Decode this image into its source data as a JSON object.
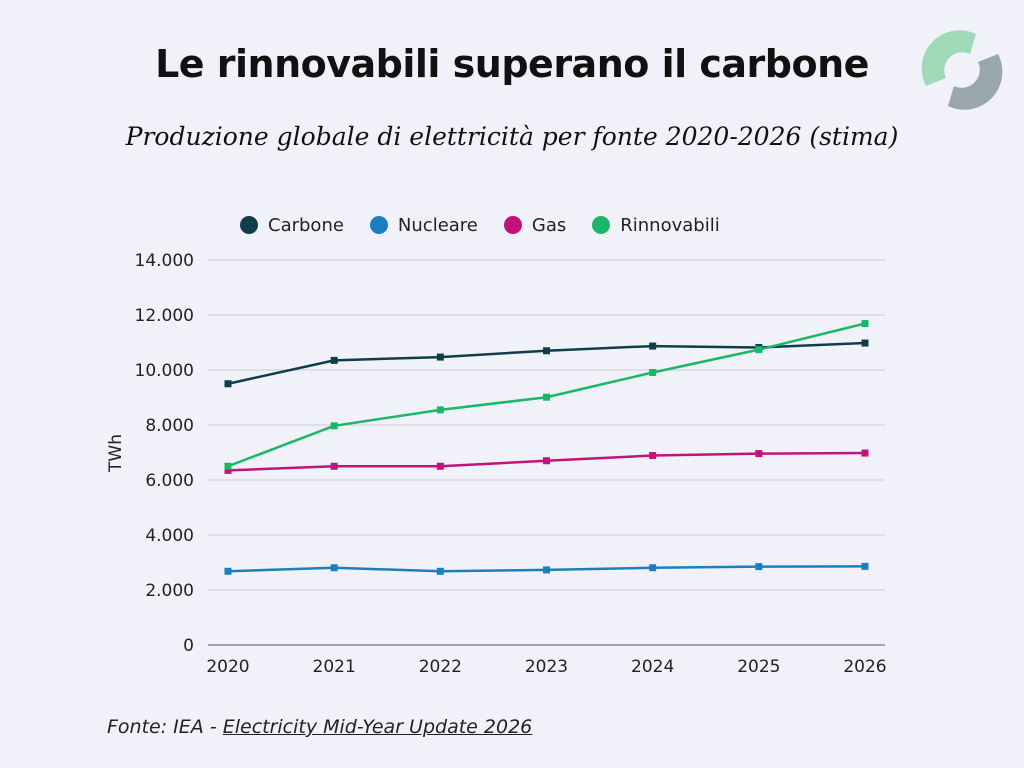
{
  "header": {
    "title": "Le rinnovabili superano il carbone",
    "subtitle": "Produzione globale di elettricità per fonte 2020-2026 (stima)"
  },
  "logo": {
    "icon": "circular-arrows-logo-icon",
    "colors": [
      "#9fd9b8",
      "#9aa6ae"
    ]
  },
  "footer": {
    "source_prefix": "Fonte: IEA - ",
    "source_link": "Electricity Mid-Year Update 2026"
  },
  "chart_data": {
    "type": "line",
    "title": "Le rinnovabili superano il carbone",
    "subtitle": "Produzione globale di elettricità per fonte 2020-2026 (stima)",
    "xlabel": "",
    "ylabel": "TWh",
    "x": [
      "2020",
      "2021",
      "2022",
      "2023",
      "2024",
      "2025",
      "2026"
    ],
    "ylim": [
      0,
      14000
    ],
    "yticks": [
      0,
      2000,
      4000,
      6000,
      8000,
      10000,
      12000,
      14000
    ],
    "ytick_labels": [
      "0",
      "2.000",
      "4.000",
      "6.000",
      "8.000",
      "10.000",
      "12.000",
      "14.000"
    ],
    "grid": "horizontal",
    "legend_position": "top",
    "series": [
      {
        "name": "Carbone",
        "color": "#0f3d4a",
        "values": [
          9500,
          10350,
          10470,
          10700,
          10870,
          10820,
          10980
        ]
      },
      {
        "name": "Nucleare",
        "color": "#1a7fc1",
        "values": [
          2680,
          2810,
          2680,
          2730,
          2810,
          2850,
          2860
        ]
      },
      {
        "name": "Gas",
        "color": "#c0137b",
        "values": [
          6350,
          6500,
          6500,
          6700,
          6890,
          6960,
          6980
        ]
      },
      {
        "name": "Rinnovabili",
        "color": "#1ab866",
        "values": [
          6500,
          7970,
          8550,
          9010,
          9910,
          10740,
          11690
        ]
      }
    ]
  }
}
